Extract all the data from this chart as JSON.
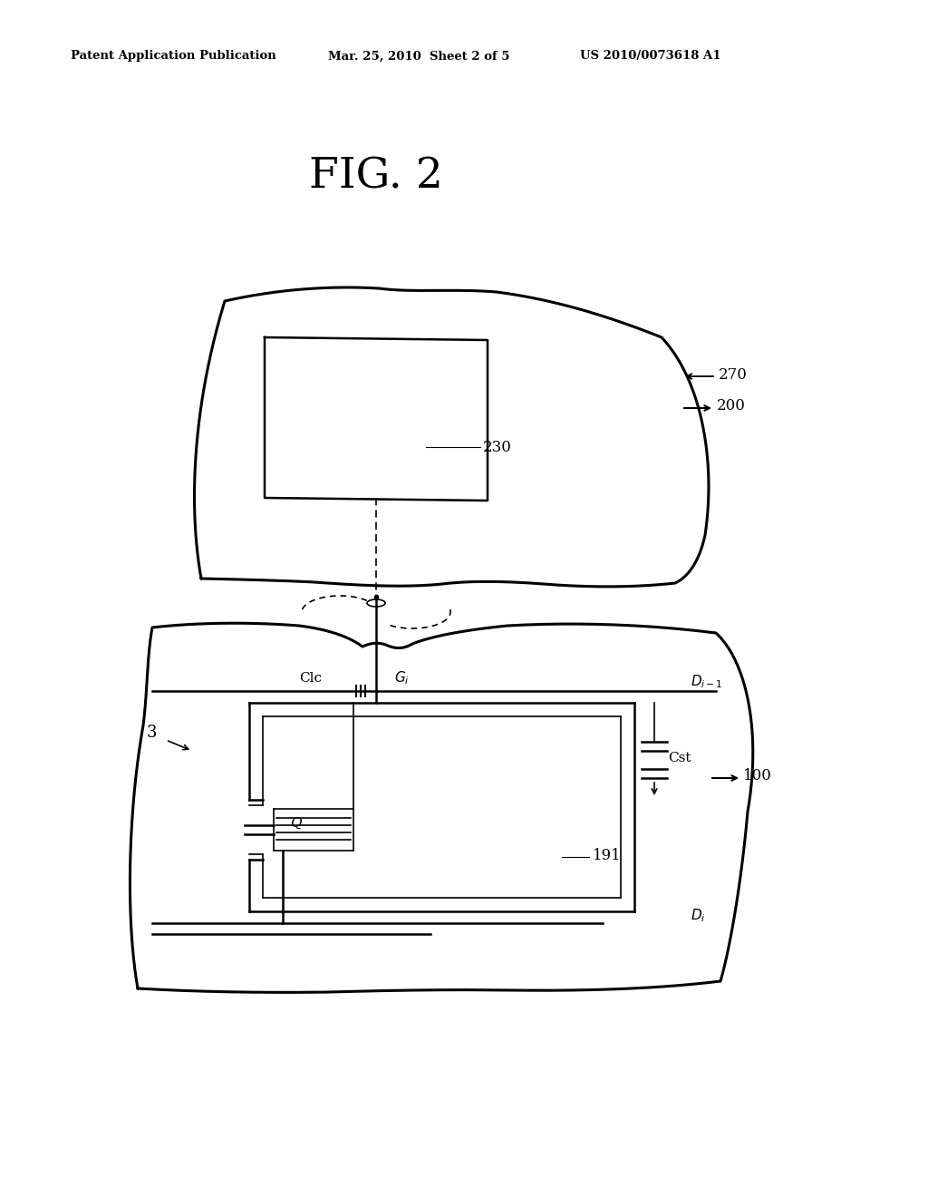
{
  "title": "FIG. 2",
  "header_left": "Patent Application Publication",
  "header_mid": "Mar. 25, 2010  Sheet 2 of 5",
  "header_right": "US 2010/0073618 A1",
  "bg_color": "#ffffff",
  "line_color": "#000000",
  "lw_thin": 1.2,
  "lw_med": 1.8,
  "lw_thick": 2.2
}
